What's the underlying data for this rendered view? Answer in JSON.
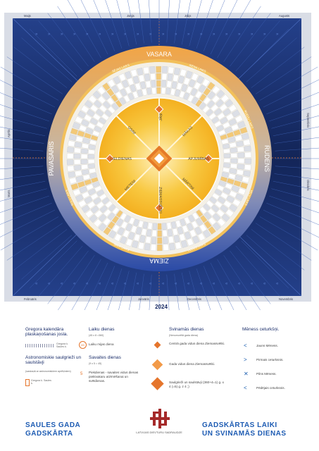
{
  "year": "2024",
  "seasons": {
    "top": "VASARA",
    "right": "RUDENS",
    "bottom": "ZIEMA",
    "left": "PAVASARIS"
  },
  "festivals": [
    "JĀŅI",
    "MĀKAS",
    "APJUMĪBAS",
    "MĀRTIŅI",
    "ZIEMASSVĒTKI",
    "METEŅI",
    "LIELDIENAS",
    "ÜSIŅI"
  ],
  "seasonal_times": [
    "SIENA LAIKS",
    "RUDZU LAIKS",
    "VEĻU LAIKS",
    "LEDUS LAIKS",
    "SALA LAIKS",
    "SULU LAIKS",
    "SĒJAS LAIKS"
  ],
  "frame_months": {
    "top": [
      "Maijs",
      "Jūnijs",
      "Jūlijs",
      "Augusts"
    ],
    "right": [
      "Septembris",
      "Oktobris"
    ],
    "bottom": [
      "Februāris",
      "Janvāris",
      "Decembris",
      "Novembris"
    ],
    "left": [
      "Aprīlis",
      "Marts"
    ]
  },
  "legend": {
    "col1": {
      "heading": "Gregora kalendāra plaskaņošanas josla.",
      "small1": "Gregora k. Saules k.",
      "heading2": "Astronomiskie saulgrieži un saulstāvji",
      "sub2": "(saskaņā ar astronomiskiem aprēķiniem)",
      "small2": "Gregora k. Saules k."
    },
    "col2": {
      "heading": "Laiku dienas",
      "sub": "(45 x 8 =360)",
      "badge": "45",
      "item1": "Laiku mijas diena",
      "heading2": "Savaites dienas",
      "sub2": "(9 x 5 = 45)",
      "badge2": "5",
      "item2": "Piekdienas - savaites vidus dienas piektvakaru atzīmēšanai un svētdienas."
    },
    "col3": {
      "heading": "Svinamās dienas",
      "sub": "(Nenumurētā gada diena)",
      "item1": "Centrā gada vidus diena Ziemassvētki.",
      "item2": "Gada vidus diena Ziemassvētki.",
      "item3": "Saulgrieži un saulstāvji (360+4=1) g. x 4 (=5) g. z 4 ;)"
    },
    "col4": {
      "heading": "Mēness ceturkšņi.",
      "item1": "Jauns Mēness.",
      "item2": "Pirmais ceturksnis.",
      "item3": "Pilns Mēness.",
      "item4": "Pēdējais ceturksnis."
    }
  },
  "title_left_1": "SAULES GADA",
  "title_left_2": "GADSKĀRTA",
  "title_right_1": "GADSKĀRTAS LAIKI",
  "title_right_2": "UN SVINAMĀS DIENAS",
  "org": "LATVIJAS DIEVTURU SADRAUDZE",
  "colors": {
    "navy": "#172a64",
    "navy_light": "#2a4ea0",
    "gold": "#f0a93c",
    "gold_light": "#f8d070",
    "orange": "#e5752c",
    "blue_title": "#1e5cb3"
  }
}
